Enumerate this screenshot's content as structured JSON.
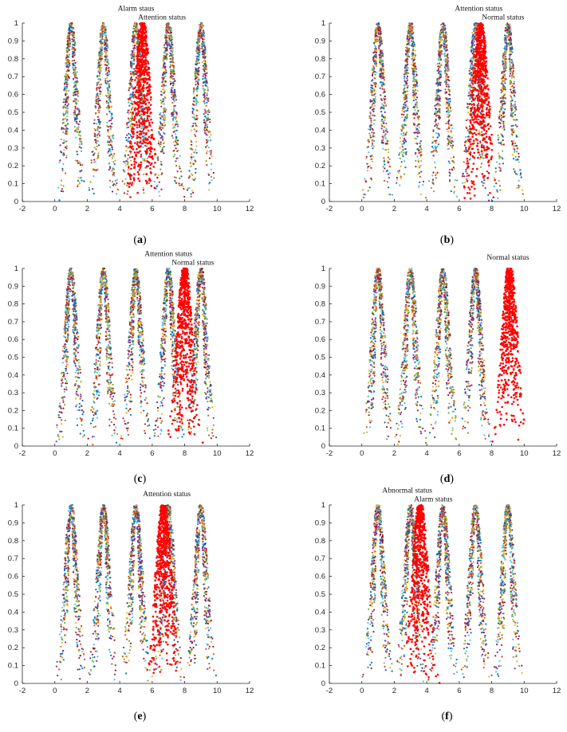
{
  "chart_data": [
    {
      "type": "scatter",
      "caption": "a",
      "xlim": [
        -2,
        12
      ],
      "ylim": [
        0,
        1
      ],
      "xticks": [
        -2,
        0,
        2,
        4,
        6,
        8,
        10,
        12
      ],
      "yticks": [
        0,
        0.1,
        0.2,
        0.3,
        0.4,
        0.5,
        0.6,
        0.7,
        0.8,
        0.9,
        1
      ],
      "background_peaks": [
        1,
        3,
        5,
        7,
        9
      ],
      "highlight": {
        "center": 5.4,
        "color": "#ff0000"
      },
      "annotations": [
        {
          "text": "Alarm staus",
          "x": 5.0,
          "y": 1.07
        },
        {
          "text": "Attention status",
          "x": 6.6,
          "y": 1.02
        }
      ]
    },
    {
      "type": "scatter",
      "caption": "b",
      "xlim": [
        -2,
        12
      ],
      "ylim": [
        0,
        1
      ],
      "xticks": [
        -2,
        0,
        2,
        4,
        6,
        8,
        10,
        12
      ],
      "yticks": [
        0,
        0.1,
        0.2,
        0.3,
        0.4,
        0.5,
        0.6,
        0.7,
        0.8,
        0.9,
        1
      ],
      "background_peaks": [
        1,
        3,
        5,
        7,
        9
      ],
      "highlight": {
        "center": 7.3,
        "color": "#ff0000"
      },
      "annotations": [
        {
          "text": "Attention status",
          "x": 7.2,
          "y": 1.07
        },
        {
          "text": "Normal status",
          "x": 8.7,
          "y": 1.02
        }
      ]
    },
    {
      "type": "scatter",
      "caption": "c",
      "xlim": [
        -2,
        12
      ],
      "ylim": [
        0,
        1
      ],
      "xticks": [
        -2,
        0,
        2,
        4,
        6,
        8,
        10,
        12
      ],
      "yticks": [
        0,
        0.1,
        0.2,
        0.3,
        0.4,
        0.5,
        0.6,
        0.7,
        0.8,
        0.9,
        1
      ],
      "background_peaks": [
        1,
        3,
        5,
        7,
        9
      ],
      "highlight": {
        "center": 8.0,
        "color": "#ff0000"
      },
      "annotations": [
        {
          "text": "Attention status",
          "x": 7.0,
          "y": 1.07
        },
        {
          "text": "Normal status",
          "x": 8.5,
          "y": 1.02
        }
      ]
    },
    {
      "type": "scatter",
      "caption": "d",
      "xlim": [
        -2,
        12
      ],
      "ylim": [
        0,
        1
      ],
      "xticks": [
        -2,
        0,
        2,
        4,
        6,
        8,
        10,
        12
      ],
      "yticks": [
        0,
        0.1,
        0.2,
        0.3,
        0.4,
        0.5,
        0.6,
        0.7,
        0.8,
        0.9,
        1
      ],
      "background_peaks": [
        1,
        3,
        5,
        7
      ],
      "highlight": {
        "center": 9.1,
        "color": "#ff0000"
      },
      "annotations": [
        {
          "text": "Normal status",
          "x": 9.0,
          "y": 1.05
        }
      ]
    },
    {
      "type": "scatter",
      "caption": "e",
      "xlim": [
        -2,
        12
      ],
      "ylim": [
        0,
        1
      ],
      "xticks": [
        -2,
        0,
        2,
        4,
        6,
        8,
        10,
        12
      ],
      "yticks": [
        0,
        0.1,
        0.2,
        0.3,
        0.4,
        0.5,
        0.6,
        0.7,
        0.8,
        0.9,
        1
      ],
      "background_peaks": [
        1,
        3,
        5,
        7,
        9
      ],
      "highlight": {
        "center": 6.7,
        "color": "#ff0000"
      },
      "annotations": [
        {
          "text": "Attention status",
          "x": 6.9,
          "y": 1.05
        }
      ]
    },
    {
      "type": "scatter",
      "caption": "f",
      "xlim": [
        -2,
        12
      ],
      "ylim": [
        0,
        1
      ],
      "xticks": [
        -2,
        0,
        2,
        4,
        6,
        8,
        10,
        12
      ],
      "yticks": [
        0,
        0.1,
        0.2,
        0.3,
        0.4,
        0.5,
        0.6,
        0.7,
        0.8,
        0.9,
        1
      ],
      "background_peaks": [
        1,
        3,
        5,
        7,
        9
      ],
      "highlight": {
        "center": 3.6,
        "color": "#ff0000"
      },
      "annotations": [
        {
          "text": "Abnormal status",
          "x": 2.8,
          "y": 1.07
        },
        {
          "text": "Alarm status",
          "x": 4.4,
          "y": 1.02
        }
      ]
    }
  ],
  "palette": [
    "#0072bd",
    "#d95319",
    "#edb120",
    "#7e2f8e",
    "#77ac30",
    "#4dbeee",
    "#a2142f"
  ]
}
